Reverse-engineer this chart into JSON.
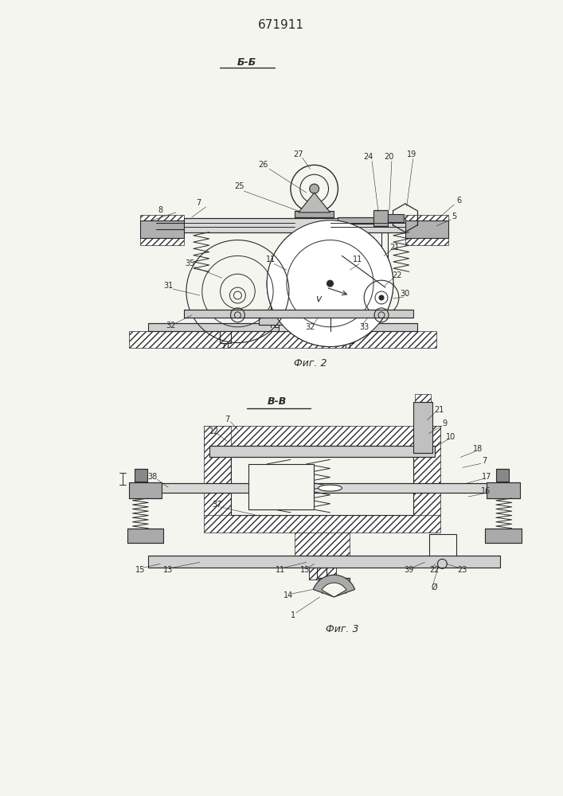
{
  "title": "671911",
  "bg_color": "#f5f5f0",
  "line_color": "#2a2a2a",
  "fig2_section": "Б-Б",
  "fig3_section": "В-В",
  "fig2_caption": "Фиг. 2",
  "fig3_caption": "Фиг. 3"
}
